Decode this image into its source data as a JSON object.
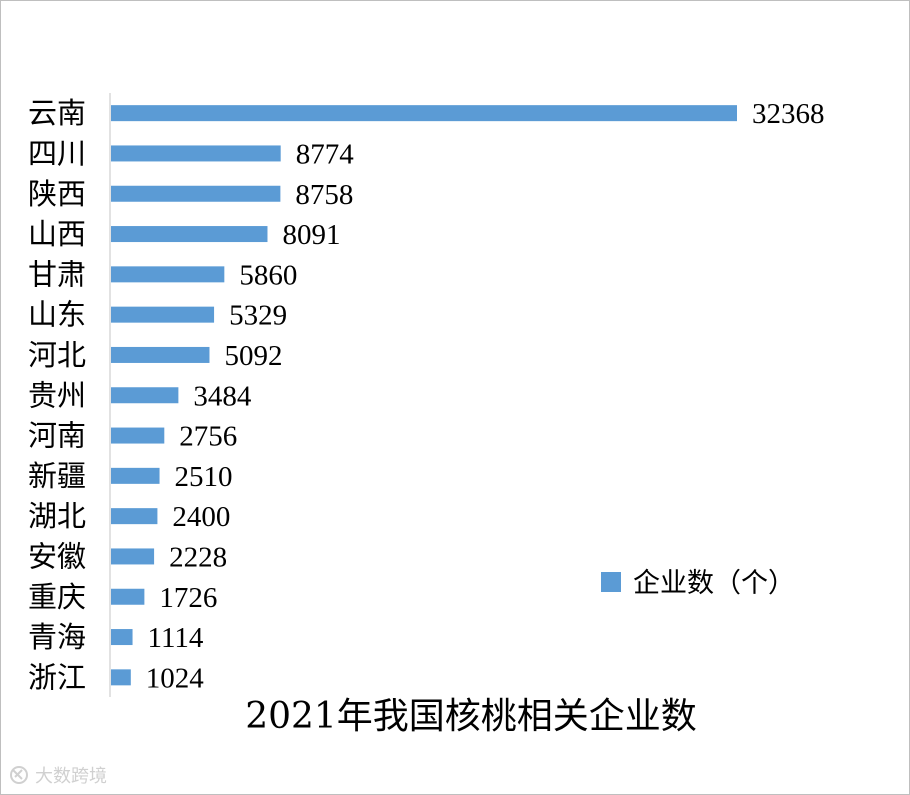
{
  "chart_data": {
    "type": "bar",
    "orientation": "horizontal",
    "title": "2021年我国核桃相关企业数",
    "categories": [
      "云南",
      "四川",
      "陕西",
      "山西",
      "甘肃",
      "山东",
      "河北",
      "贵州",
      "河南",
      "新疆",
      "湖北",
      "安徽",
      "重庆",
      "青海",
      "浙江"
    ],
    "series": [
      {
        "name": "企业数（个）",
        "values": [
          32368,
          8774,
          8758,
          8091,
          5860,
          5329,
          5092,
          3484,
          2756,
          2510,
          2400,
          2228,
          1726,
          1114,
          1024
        ],
        "color": "#5b9bd5"
      }
    ],
    "xlim": [
      0,
      32368
    ],
    "grid": false,
    "legend": "center-right",
    "data_labels": true
  },
  "watermark": "大数跨境"
}
